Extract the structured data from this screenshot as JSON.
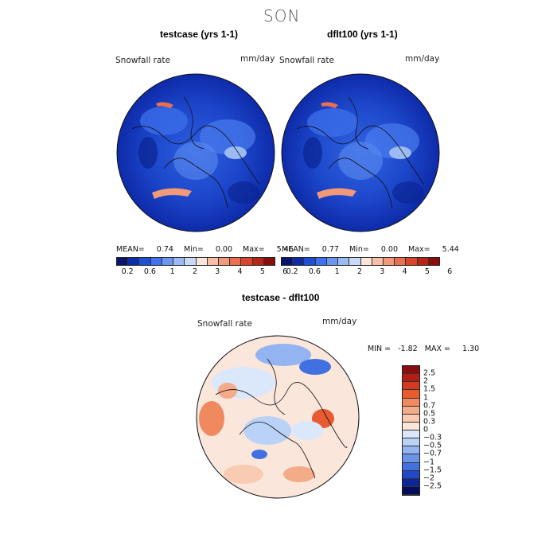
{
  "season": "SON",
  "panels": [
    {
      "title": "testcase (yrs 1-1)",
      "field": "Snowfall rate",
      "units": "mm/day",
      "mean_label": "MEAN=",
      "mean": "0.74",
      "min_label": "Min=",
      "min": "0.00",
      "max_label": "Max=",
      "max": "5.46"
    },
    {
      "title": "dflt100 (yrs 1-1)",
      "field": "Snowfall rate",
      "units": "mm/day",
      "mean_label": "MEAN=",
      "mean": "0.77",
      "min_label": "Min=",
      "min": "0.00",
      "max_label": "Max=",
      "max": "5.44"
    }
  ],
  "colorbar_ticks": [
    "0.2",
    "0.6",
    "1",
    "2",
    "3",
    "4",
    "5",
    "6"
  ],
  "colorbar_colors": [
    "#08146b",
    "#0b2ba8",
    "#1e50d6",
    "#3f72ec",
    "#6c96f2",
    "#9cbbf5",
    "#c9daf8",
    "#fbe6dc",
    "#f6bfa6",
    "#f19978",
    "#ea6e4f",
    "#d9452b",
    "#b62516",
    "#8a0d0d"
  ],
  "diff": {
    "title": "testcase - dflt100",
    "field": "Snowfall rate",
    "units": "mm/day",
    "min_label": "MIN =",
    "min": "-1.82",
    "max_label": "MAX =",
    "max": "1.30",
    "levels": [
      "2.5",
      "2",
      "1.5",
      "1",
      "0.7",
      "0.5",
      "0.3",
      "0",
      "−0.3",
      "−0.5",
      "−0.7",
      "−1",
      "−1.5",
      "−2",
      "−2.5"
    ],
    "colors": [
      "#8a0d0d",
      "#b31e12",
      "#d33a1f",
      "#e85a30",
      "#f08a5e",
      "#f4ab88",
      "#f8cbb2",
      "#fce6d8",
      "#dbe8fb",
      "#bad2f7",
      "#93b4f1",
      "#6b93ea",
      "#4170e0",
      "#2148c6",
      "#0d2596",
      "#050e5e"
    ]
  }
}
